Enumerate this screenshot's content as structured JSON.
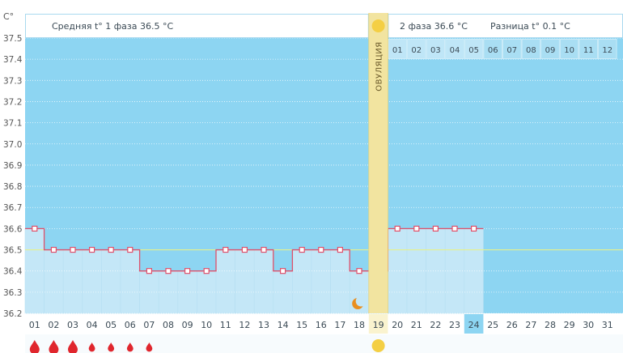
{
  "chart_data": {
    "type": "line",
    "unit_label": "C°",
    "y_ticks": [
      "36.2",
      "36.3",
      "36.4",
      "36.5",
      "36.6",
      "36.7",
      "36.8",
      "36.9",
      "37.0",
      "37.1",
      "37.2",
      "37.3",
      "37.4",
      "37.5"
    ],
    "ylim": [
      36.2,
      37.5
    ],
    "days": [
      "01",
      "02",
      "03",
      "04",
      "05",
      "06",
      "07",
      "08",
      "09",
      "10",
      "11",
      "12",
      "13",
      "14",
      "15",
      "16",
      "17",
      "18",
      "19",
      "20",
      "21",
      "22",
      "23",
      "24",
      "25",
      "26",
      "27",
      "28",
      "29",
      "30",
      "31"
    ],
    "phase2_day_labels": [
      "01",
      "02",
      "03",
      "04",
      "05",
      "06",
      "07",
      "08",
      "09",
      "10",
      "11",
      "12"
    ],
    "series": [
      {
        "values": [
          36.6,
          36.5,
          36.5,
          36.5,
          36.5,
          36.5,
          36.4,
          36.4,
          36.4,
          36.4,
          36.5,
          36.5,
          36.5,
          36.4,
          36.5,
          36.5,
          36.5,
          36.4,
          36.4,
          36.6,
          36.6,
          36.6,
          36.6,
          36.6
        ]
      }
    ],
    "average_line": 36.5,
    "phase1_label": "Средняя t° 1 фаза 36.5 °C",
    "phase2_label": "2 фаза 36.6 °C",
    "diff_label": "Разница t° 0.1 °C",
    "ovulation_label": "ОВУЛЯЦИЯ",
    "ovulation_day": 19,
    "current_day": 24,
    "moon_day": 18,
    "menstruation_days": [
      1,
      2,
      3,
      4,
      5,
      6,
      7
    ],
    "menstruation_levels": [
      "large",
      "large",
      "large",
      "small",
      "small",
      "small",
      "small"
    ]
  },
  "colors": {
    "plot_bg": "#8dd5f2",
    "bar_fill": "#c4e7f7",
    "line": "#e0506a",
    "ovulation_band": "#f2e4a0",
    "sun": "#f4cf44",
    "average_line": "#e6f08c",
    "drop": "#e0262d",
    "moon": "#e98f1f",
    "current_day_bg": "#8dd5f2"
  }
}
